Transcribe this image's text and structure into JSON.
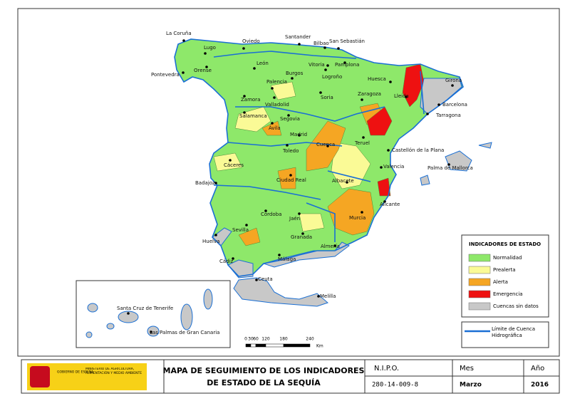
{
  "map": {
    "cities": [
      "La Coruña",
      "Lugo",
      "Oviedo",
      "Santander",
      "Bilbao",
      "San Sebastián",
      "Pontevedra",
      "Orense",
      "León",
      "Vitoria",
      "Pamplona",
      "Logroño",
      "Burgos",
      "Palencia",
      "Huesca",
      "Girona",
      "Zaragoza",
      "Lleida",
      "Barcelona",
      "Soria",
      "Zamora",
      "Valladolid",
      "Tarragona",
      "Salamanca",
      "Segovia",
      "Ávila",
      "Madrid",
      "Cuenca",
      "Teruel",
      "Castellón de la Plana",
      "Palma de Mallorca",
      "Toledo",
      "Cáceres",
      "Valencia",
      "Badajoz",
      "Ciudad Real",
      "Albacete",
      "Alicante",
      "Murcia",
      "Córdoba",
      "Jaén",
      "Sevilla",
      "Granada",
      "Huelva",
      "Almería",
      "Málaga",
      "Cádiz",
      "Ceuta",
      "Melilla",
      "Santa Cruz de Tenerife",
      "Las Palmas de Gran Canaria"
    ]
  },
  "legend": {
    "title": "INDICADORES DE ESTADO",
    "items": [
      {
        "label": "Normalidad",
        "color": "#8ee86a"
      },
      {
        "label": "Prealerta",
        "color": "#fafa96"
      },
      {
        "label": "Alerta",
        "color": "#f5a623"
      },
      {
        "label": "Emergencia",
        "color": "#ee1111"
      },
      {
        "label": "Cuencas sin datos",
        "color": "#c8c8c8"
      }
    ],
    "boundary": {
      "label": "Límite de Cuenca Hidrográfica",
      "color": "#1a6fd4"
    }
  },
  "scale": {
    "ticks": [
      "0",
      "30",
      "60",
      "120",
      "180",
      "240"
    ],
    "unit": "Km"
  },
  "footer": {
    "logo_left": "GOBIERNO DE ESPAÑA",
    "logo_right": "MINISTERIO DE AGRICULTURA, ALIMENTACIÓN Y MEDIO AMBIENTE",
    "title_line1": "MAPA DE SEGUIMIENTO DE LOS INDICADORES",
    "title_line2": "DE ESTADO DE LA SEQUÍA",
    "nipo_label": "N.I.P.O.",
    "nipo": "280-14-009-8",
    "month_label": "Mes",
    "month": "Marzo",
    "year_label": "Año",
    "year": "2016"
  }
}
